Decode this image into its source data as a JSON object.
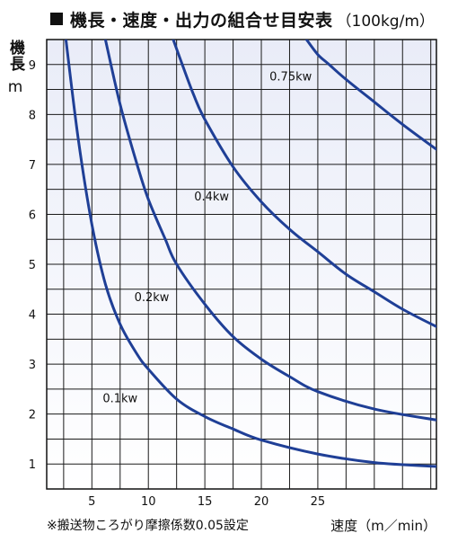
{
  "chart_data": {
    "type": "line",
    "title": "機長・速度・出力の組合せ目安表",
    "title_unit": "（100kg/m）",
    "ylabel": "機長",
    "ylabel_unit": "m",
    "xlabel": "速度（m／min）",
    "footnote": "※搬送物ころがり摩擦係数0.05設定",
    "xlim": [
      1,
      35.5
    ],
    "ylim": [
      0.5,
      9.5
    ],
    "x_ticks": [
      5,
      10,
      15,
      20,
      25
    ],
    "y_ticks": [
      1,
      2,
      3,
      4,
      5,
      6,
      7,
      8,
      9
    ],
    "grid": true,
    "background_gradient": [
      "#e9ecf8",
      "#ffffff"
    ],
    "series_color": "#1f3f96",
    "series": [
      {
        "name": "0.1kw",
        "points": [
          [
            2.7,
            9.5
          ],
          [
            3.8,
            7.5
          ],
          [
            5,
            5.8
          ],
          [
            6.2,
            4.6
          ],
          [
            7.5,
            3.8
          ],
          [
            9,
            3.2
          ],
          [
            10,
            2.9
          ],
          [
            12.5,
            2.3
          ],
          [
            15,
            1.95
          ],
          [
            17.5,
            1.7
          ],
          [
            20,
            1.48
          ],
          [
            25,
            1.2
          ],
          [
            30,
            1.03
          ],
          [
            35.5,
            0.95
          ]
        ]
      },
      {
        "name": "0.2kw",
        "points": [
          [
            6.2,
            9.5
          ],
          [
            7.5,
            8.2
          ],
          [
            9,
            7.0
          ],
          [
            10,
            6.3
          ],
          [
            11.5,
            5.5
          ],
          [
            12.5,
            5.0
          ],
          [
            15,
            4.2
          ],
          [
            17.5,
            3.55
          ],
          [
            20,
            3.1
          ],
          [
            22.5,
            2.75
          ],
          [
            25,
            2.45
          ],
          [
            30,
            2.1
          ],
          [
            35.5,
            1.88
          ]
        ]
      },
      {
        "name": "0.4kw",
        "points": [
          [
            12.2,
            9.5
          ],
          [
            13,
            9.0
          ],
          [
            14,
            8.4
          ],
          [
            15,
            7.9
          ],
          [
            17.5,
            6.95
          ],
          [
            20,
            6.25
          ],
          [
            22.5,
            5.7
          ],
          [
            25,
            5.25
          ],
          [
            27.5,
            4.8
          ],
          [
            30,
            4.45
          ],
          [
            32.5,
            4.1
          ],
          [
            35.5,
            3.75
          ]
        ]
      },
      {
        "name": "0.75kw",
        "points": [
          [
            24,
            9.5
          ],
          [
            25,
            9.2
          ],
          [
            26,
            9.0
          ],
          [
            27.5,
            8.7
          ],
          [
            30,
            8.25
          ],
          [
            32.5,
            7.8
          ],
          [
            35.5,
            7.3
          ]
        ]
      }
    ],
    "series_labels": [
      {
        "text": "0.1kw",
        "x": 7.5,
        "y": 2.24
      },
      {
        "text": "0.2kw",
        "x": 10.3,
        "y": 4.26
      },
      {
        "text": "0.4kw",
        "x": 15.6,
        "y": 6.28
      },
      {
        "text": "0.75kw",
        "x": 22.6,
        "y": 8.68
      }
    ]
  }
}
